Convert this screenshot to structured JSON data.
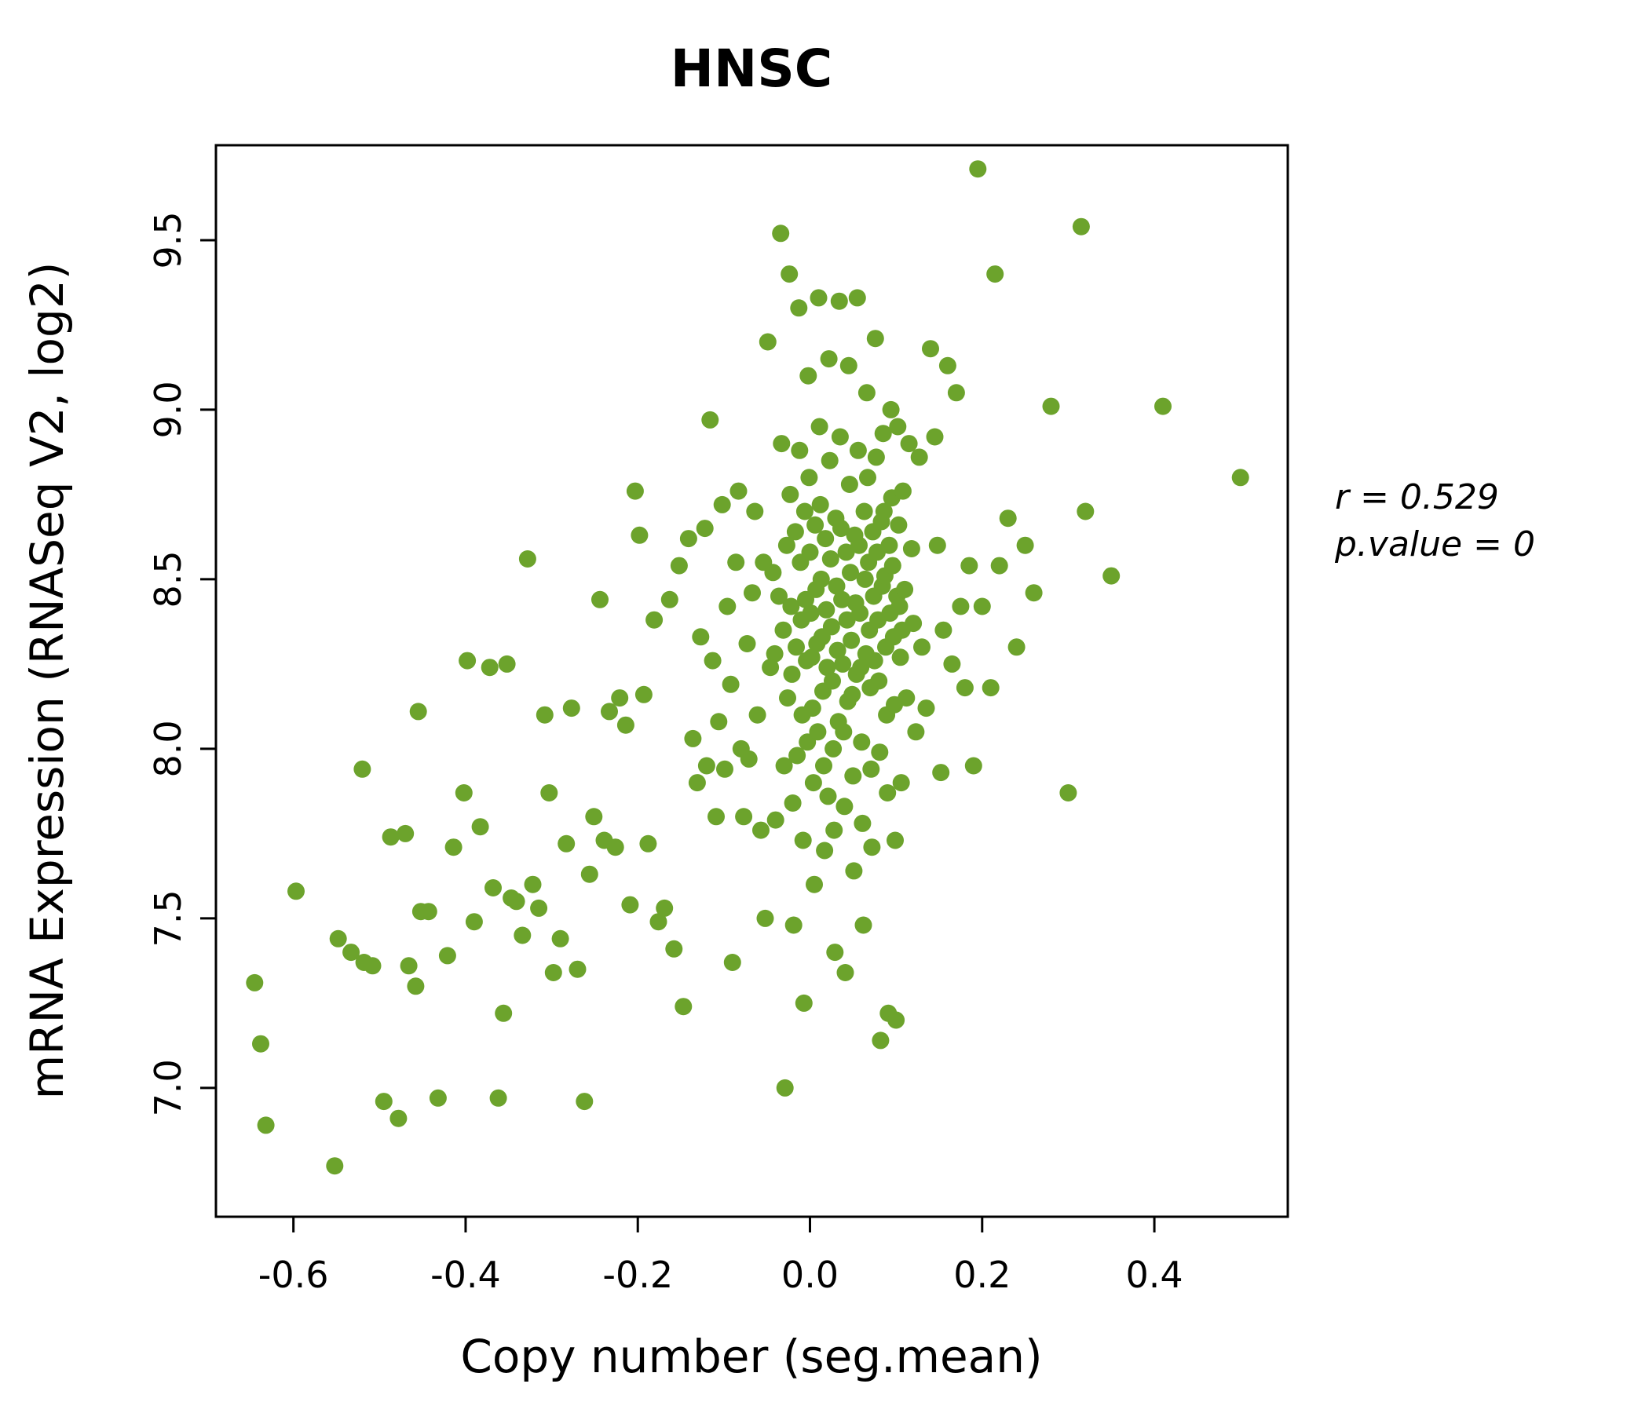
{
  "chart_data": {
    "type": "scatter",
    "title": "HNSC",
    "xlabel": "Copy number (seg.mean)",
    "ylabel": "mRNA Expression (RNASeq V2, log2)",
    "xlim": [
      -0.69,
      0.555
    ],
    "ylim": [
      6.62,
      9.78
    ],
    "grid": false,
    "legend": "none",
    "x_ticks": {
      "values": [
        -0.6,
        -0.4,
        -0.2,
        0.0,
        0.2,
        0.4
      ],
      "labels": [
        "-0.6",
        "-0.4",
        "-0.2",
        "0.0",
        "0.2",
        "0.4"
      ]
    },
    "y_ticks": {
      "values": [
        7.0,
        7.5,
        8.0,
        8.5,
        9.0,
        9.5
      ],
      "labels": [
        "7.0",
        "7.5",
        "8.0",
        "8.5",
        "9.0",
        "9.5"
      ]
    },
    "annotations": [
      "r = 0.529",
      "p.value = 0"
    ],
    "colors": {
      "point": "#6CA32C",
      "title": "#56B42C",
      "axis": "#000000"
    },
    "points": [
      [
        -0.645,
        7.31
      ],
      [
        -0.638,
        7.13
      ],
      [
        -0.632,
        6.89
      ],
      [
        -0.597,
        7.58
      ],
      [
        -0.552,
        6.77
      ],
      [
        -0.548,
        7.44
      ],
      [
        -0.533,
        7.4
      ],
      [
        -0.52,
        7.94
      ],
      [
        -0.518,
        7.37
      ],
      [
        -0.508,
        7.36
      ],
      [
        -0.495,
        6.96
      ],
      [
        -0.487,
        7.74
      ],
      [
        -0.478,
        6.91
      ],
      [
        -0.47,
        7.75
      ],
      [
        -0.466,
        7.36
      ],
      [
        -0.458,
        7.3
      ],
      [
        -0.455,
        8.11
      ],
      [
        -0.452,
        7.52
      ],
      [
        -0.443,
        7.52
      ],
      [
        -0.432,
        6.97
      ],
      [
        -0.421,
        7.39
      ],
      [
        -0.414,
        7.71
      ],
      [
        -0.402,
        7.87
      ],
      [
        -0.398,
        8.26
      ],
      [
        -0.39,
        7.49
      ],
      [
        -0.383,
        7.77
      ],
      [
        -0.372,
        8.24
      ],
      [
        -0.368,
        7.59
      ],
      [
        -0.362,
        6.97
      ],
      [
        -0.356,
        7.22
      ],
      [
        -0.352,
        8.25
      ],
      [
        -0.347,
        7.56
      ],
      [
        -0.341,
        7.55
      ],
      [
        -0.334,
        7.45
      ],
      [
        -0.328,
        8.56
      ],
      [
        -0.322,
        7.6
      ],
      [
        -0.315,
        7.53
      ],
      [
        -0.308,
        8.1
      ],
      [
        -0.303,
        7.87
      ],
      [
        -0.298,
        7.34
      ],
      [
        -0.29,
        7.44
      ],
      [
        -0.283,
        7.72
      ],
      [
        -0.277,
        8.12
      ],
      [
        -0.27,
        7.35
      ],
      [
        -0.262,
        6.96
      ],
      [
        -0.256,
        7.63
      ],
      [
        -0.251,
        7.8
      ],
      [
        -0.244,
        8.44
      ],
      [
        -0.239,
        7.73
      ],
      [
        -0.233,
        8.11
      ],
      [
        -0.226,
        7.71
      ],
      [
        -0.221,
        8.15
      ],
      [
        -0.214,
        8.07
      ],
      [
        -0.209,
        7.54
      ],
      [
        -0.203,
        8.76
      ],
      [
        -0.198,
        8.63
      ],
      [
        -0.193,
        8.16
      ],
      [
        -0.188,
        7.72
      ],
      [
        -0.181,
        8.38
      ],
      [
        -0.176,
        7.49
      ],
      [
        -0.169,
        7.53
      ],
      [
        -0.163,
        8.44
      ],
      [
        -0.158,
        7.41
      ],
      [
        -0.152,
        8.54
      ],
      [
        -0.147,
        7.24
      ],
      [
        -0.141,
        8.62
      ],
      [
        -0.136,
        8.03
      ],
      [
        -0.131,
        7.9
      ],
      [
        -0.127,
        8.33
      ],
      [
        -0.122,
        8.65
      ],
      [
        -0.12,
        7.95
      ],
      [
        -0.116,
        8.97
      ],
      [
        -0.113,
        8.26
      ],
      [
        -0.109,
        7.8
      ],
      [
        -0.106,
        8.08
      ],
      [
        -0.102,
        8.72
      ],
      [
        -0.099,
        7.94
      ],
      [
        -0.096,
        8.42
      ],
      [
        -0.092,
        8.19
      ],
      [
        -0.09,
        7.37
      ],
      [
        -0.086,
        8.55
      ],
      [
        -0.083,
        8.76
      ],
      [
        -0.08,
        8.0
      ],
      [
        -0.077,
        7.8
      ],
      [
        -0.073,
        8.31
      ],
      [
        -0.071,
        7.97
      ],
      [
        -0.067,
        8.46
      ],
      [
        -0.064,
        8.7
      ],
      [
        -0.061,
        8.1
      ],
      [
        -0.057,
        7.76
      ],
      [
        -0.054,
        8.55
      ],
      [
        -0.052,
        7.5
      ],
      [
        -0.049,
        9.2
      ],
      [
        -0.046,
        8.24
      ],
      [
        -0.043,
        8.52
      ],
      [
        -0.041,
        8.28
      ],
      [
        -0.04,
        7.79
      ],
      [
        -0.036,
        8.45
      ],
      [
        -0.034,
        9.52
      ],
      [
        -0.033,
        8.9
      ],
      [
        -0.031,
        8.35
      ],
      [
        -0.03,
        7.95
      ],
      [
        -0.029,
        7.0
      ],
      [
        -0.027,
        8.6
      ],
      [
        -0.026,
        8.15
      ],
      [
        -0.024,
        9.4
      ],
      [
        -0.023,
        8.75
      ],
      [
        -0.022,
        8.42
      ],
      [
        -0.021,
        8.22
      ],
      [
        -0.02,
        7.84
      ],
      [
        -0.019,
        7.48
      ],
      [
        -0.017,
        8.64
      ],
      [
        -0.016,
        8.3
      ],
      [
        -0.015,
        7.98
      ],
      [
        -0.013,
        9.3
      ],
      [
        -0.012,
        8.88
      ],
      [
        -0.011,
        8.55
      ],
      [
        -0.01,
        8.38
      ],
      [
        -0.009,
        8.1
      ],
      [
        -0.008,
        7.73
      ],
      [
        -0.007,
        7.25
      ],
      [
        -0.006,
        8.7
      ],
      [
        -0.005,
        8.44
      ],
      [
        -0.004,
        8.26
      ],
      [
        -0.003,
        8.02
      ],
      [
        -0.002,
        9.1
      ],
      [
        -0.001,
        8.8
      ],
      [
        0.0,
        8.58
      ],
      [
        0.001,
        8.4
      ],
      [
        0.002,
        8.27
      ],
      [
        0.003,
        8.12
      ],
      [
        0.004,
        7.9
      ],
      [
        0.005,
        7.6
      ],
      [
        0.006,
        8.66
      ],
      [
        0.007,
        8.47
      ],
      [
        0.008,
        8.31
      ],
      [
        0.009,
        8.05
      ],
      [
        0.01,
        9.33
      ],
      [
        0.011,
        8.95
      ],
      [
        0.012,
        8.72
      ],
      [
        0.013,
        8.5
      ],
      [
        0.014,
        8.33
      ],
      [
        0.015,
        8.17
      ],
      [
        0.016,
        7.95
      ],
      [
        0.017,
        7.7
      ],
      [
        0.018,
        8.62
      ],
      [
        0.019,
        8.41
      ],
      [
        0.02,
        8.24
      ],
      [
        0.021,
        7.86
      ],
      [
        0.022,
        9.15
      ],
      [
        0.023,
        8.85
      ],
      [
        0.024,
        8.56
      ],
      [
        0.025,
        8.36
      ],
      [
        0.026,
        8.2
      ],
      [
        0.027,
        8.0
      ],
      [
        0.028,
        7.76
      ],
      [
        0.029,
        7.4
      ],
      [
        0.03,
        8.68
      ],
      [
        0.031,
        8.48
      ],
      [
        0.032,
        8.29
      ],
      [
        0.033,
        8.08
      ],
      [
        0.034,
        9.32
      ],
      [
        0.035,
        8.92
      ],
      [
        0.036,
        8.65
      ],
      [
        0.037,
        8.44
      ],
      [
        0.038,
        8.25
      ],
      [
        0.039,
        8.05
      ],
      [
        0.04,
        7.83
      ],
      [
        0.041,
        7.34
      ],
      [
        0.042,
        8.58
      ],
      [
        0.043,
        8.38
      ],
      [
        0.044,
        8.14
      ],
      [
        0.045,
        9.13
      ],
      [
        0.046,
        8.78
      ],
      [
        0.047,
        8.52
      ],
      [
        0.048,
        8.32
      ],
      [
        0.049,
        8.16
      ],
      [
        0.05,
        7.92
      ],
      [
        0.051,
        7.64
      ],
      [
        0.052,
        8.63
      ],
      [
        0.053,
        8.43
      ],
      [
        0.054,
        8.22
      ],
      [
        0.055,
        9.33
      ],
      [
        0.056,
        8.88
      ],
      [
        0.057,
        8.6
      ],
      [
        0.058,
        8.4
      ],
      [
        0.059,
        8.24
      ],
      [
        0.06,
        8.02
      ],
      [
        0.061,
        7.78
      ],
      [
        0.062,
        7.48
      ],
      [
        0.063,
        8.7
      ],
      [
        0.064,
        8.5
      ],
      [
        0.065,
        8.28
      ],
      [
        0.066,
        9.05
      ],
      [
        0.067,
        8.8
      ],
      [
        0.068,
        8.55
      ],
      [
        0.069,
        8.35
      ],
      [
        0.07,
        8.18
      ],
      [
        0.071,
        7.94
      ],
      [
        0.072,
        7.71
      ],
      [
        0.073,
        8.64
      ],
      [
        0.074,
        8.45
      ],
      [
        0.075,
        8.26
      ],
      [
        0.076,
        9.21
      ],
      [
        0.077,
        8.86
      ],
      [
        0.078,
        8.58
      ],
      [
        0.079,
        8.38
      ],
      [
        0.08,
        8.2
      ],
      [
        0.081,
        7.99
      ],
      [
        0.082,
        7.14
      ],
      [
        0.083,
        8.67
      ],
      [
        0.084,
        8.48
      ],
      [
        0.085,
        8.93
      ],
      [
        0.086,
        8.7
      ],
      [
        0.087,
        8.51
      ],
      [
        0.088,
        8.3
      ],
      [
        0.089,
        8.1
      ],
      [
        0.09,
        7.87
      ],
      [
        0.091,
        7.22
      ],
      [
        0.092,
        8.6
      ],
      [
        0.093,
        8.4
      ],
      [
        0.094,
        9.0
      ],
      [
        0.095,
        8.74
      ],
      [
        0.096,
        8.54
      ],
      [
        0.097,
        8.33
      ],
      [
        0.098,
        8.13
      ],
      [
        0.099,
        7.73
      ],
      [
        0.1,
        7.2
      ],
      [
        0.101,
        8.45
      ],
      [
        0.102,
        8.95
      ],
      [
        0.103,
        8.66
      ],
      [
        0.104,
        8.42
      ],
      [
        0.105,
        8.27
      ],
      [
        0.106,
        7.9
      ],
      [
        0.107,
        8.35
      ],
      [
        0.108,
        8.76
      ],
      [
        0.11,
        8.47
      ],
      [
        0.112,
        8.15
      ],
      [
        0.115,
        8.9
      ],
      [
        0.118,
        8.59
      ],
      [
        0.12,
        8.37
      ],
      [
        0.123,
        8.05
      ],
      [
        0.127,
        8.86
      ],
      [
        0.13,
        8.3
      ],
      [
        0.135,
        8.12
      ],
      [
        0.14,
        9.18
      ],
      [
        0.145,
        8.92
      ],
      [
        0.148,
        8.6
      ],
      [
        0.152,
        7.93
      ],
      [
        0.155,
        8.35
      ],
      [
        0.16,
        9.13
      ],
      [
        0.165,
        8.25
      ],
      [
        0.17,
        9.05
      ],
      [
        0.175,
        8.42
      ],
      [
        0.18,
        8.18
      ],
      [
        0.185,
        8.54
      ],
      [
        0.19,
        7.95
      ],
      [
        0.195,
        9.71
      ],
      [
        0.2,
        8.42
      ],
      [
        0.21,
        8.18
      ],
      [
        0.215,
        9.4
      ],
      [
        0.22,
        8.54
      ],
      [
        0.23,
        8.68
      ],
      [
        0.24,
        8.3
      ],
      [
        0.25,
        8.6
      ],
      [
        0.26,
        8.46
      ],
      [
        0.28,
        9.01
      ],
      [
        0.3,
        7.87
      ],
      [
        0.315,
        9.54
      ],
      [
        0.32,
        8.7
      ],
      [
        0.35,
        8.51
      ],
      [
        0.41,
        9.01
      ],
      [
        0.5,
        8.8
      ]
    ]
  }
}
